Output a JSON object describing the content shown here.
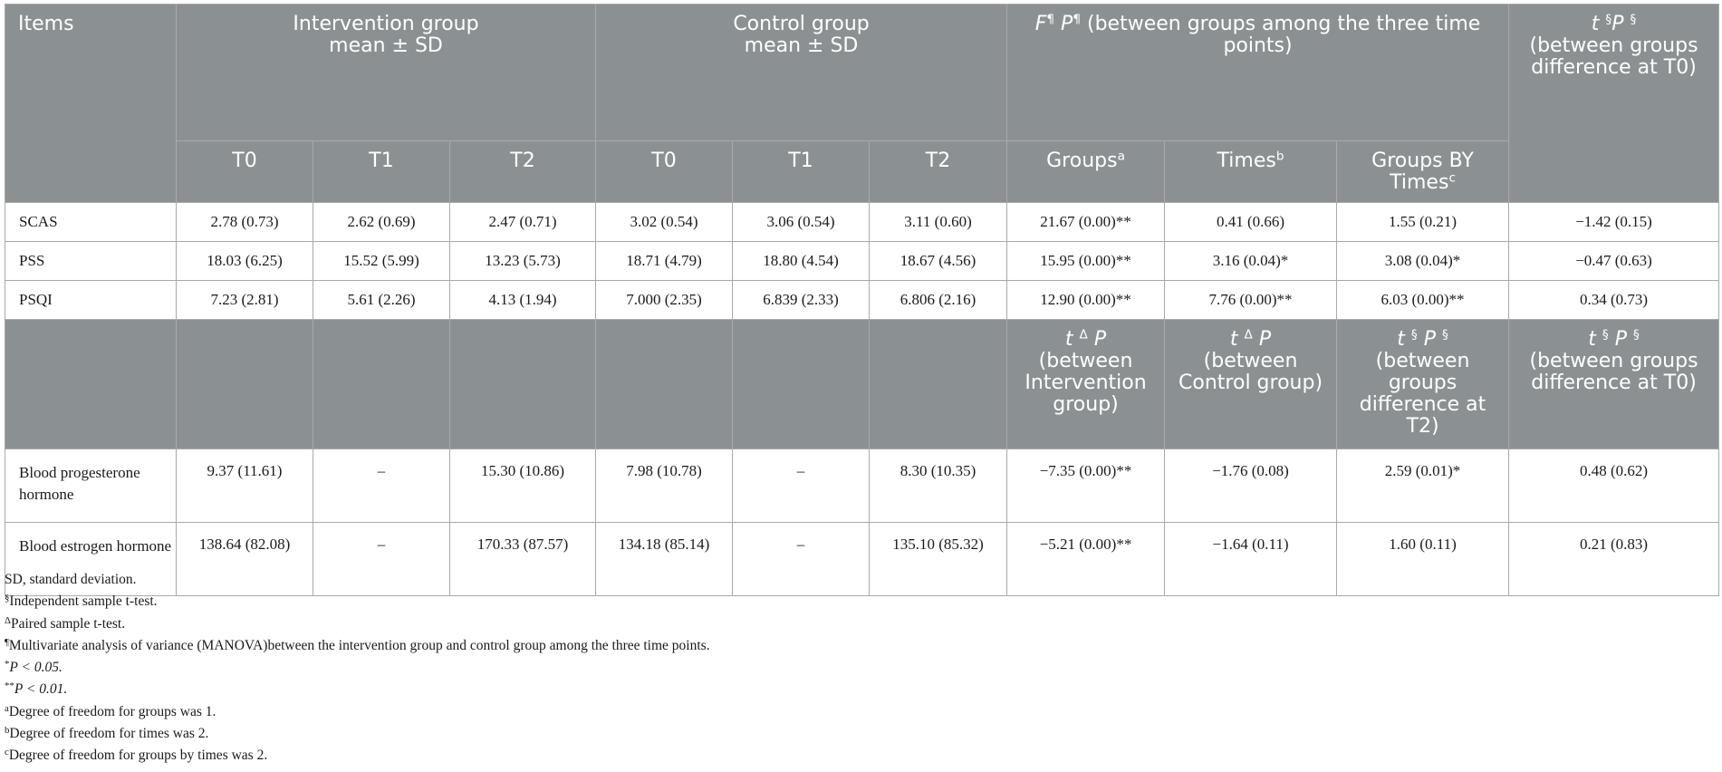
{
  "header": {
    "items": "Items",
    "intervention_group": "Intervention group",
    "control_group": "Control group",
    "mean_sd": "mean ± SD",
    "F": "F",
    "P": "P",
    "pilcrow": "¶",
    "between_groups_three_time_points": "(between groups among the three time points)",
    "t": "t",
    "section": "§",
    "delta": "Δ",
    "between_groups_diff_T0": "(between groups difference at T0)",
    "T0": "T0",
    "T1": "T1",
    "T2": "T2",
    "groups": "Groups",
    "times": "Times",
    "groups_by_times": "Groups BY Times",
    "sup_a": "a",
    "sup_b": "b",
    "sup_c": "c",
    "between_intervention": "(between Intervention group)",
    "between_control": "(between Control group)",
    "between_groups_diff_T2": "(between groups difference at T2)"
  },
  "rows": [
    {
      "item": "SCAS",
      "values": [
        "2.78 (0.73)",
        "2.62 (0.69)",
        "2.47 (0.71)",
        "3.02 (0.54)",
        "3.06 (0.54)",
        "3.11 (0.60)",
        "21.67 (0.00)**",
        "0.41 (0.66)",
        "1.55 (0.21)",
        "−1.42 (0.15)"
      ]
    },
    {
      "item": "PSS",
      "values": [
        "18.03 (6.25)",
        "15.52 (5.99)",
        "13.23 (5.73)",
        "18.71 (4.79)",
        "18.80 (4.54)",
        "18.67 (4.56)",
        "15.95 (0.00)**",
        "3.16 (0.04)*",
        "3.08 (0.04)*",
        "−0.47 (0.63)"
      ]
    },
    {
      "item": "PSQI",
      "values": [
        "7.23 (2.81)",
        "5.61 (2.26)",
        "4.13 (1.94)",
        "7.000 (2.35)",
        "6.839 (2.33)",
        "6.806 (2.16)",
        "12.90 (0.00)**",
        "7.76 (0.00)**",
        "6.03 (0.00)**",
        "0.34 (0.73)"
      ]
    }
  ],
  "rows2": [
    {
      "item": "Blood progesterone hormone",
      "values": [
        "9.37 (11.61)",
        "–",
        "15.30 (10.86)",
        "7.98 (10.78)",
        "–",
        "8.30 (10.35)",
        "−7.35 (0.00)**",
        "−1.76 (0.08)",
        "2.59 (0.01)*",
        "0.48 (0.62)"
      ]
    },
    {
      "item": "Blood estrogen hormone",
      "values": [
        "138.64 (82.08)",
        "–",
        "170.33 (87.57)",
        "134.18 (85.14)",
        "–",
        "135.10 (85.32)",
        "−5.21 (0.00)**",
        "−1.64 (0.11)",
        "1.60 (0.11)",
        "0.21 (0.83)"
      ]
    }
  ],
  "footnotes": {
    "sd": "SD, standard deviation.",
    "section_sym": "§",
    "section_text": "Independent sample t-test.",
    "delta_sym": "Δ",
    "delta_text": "Paired sample t-test.",
    "pilcrow_sym": "¶",
    "pilcrow_text": "Multivariate analysis of variance (MANOVA)between the intervention group and control group among the three time points.",
    "star_sym": "*",
    "star_text": "P < 0.05.",
    "dstar_sym": "**",
    "dstar_text": "P < 0.01.",
    "a_sym": "a",
    "a_text": "Degree of freedom for groups was 1.",
    "b_sym": "b",
    "b_text": "Degree of freedom for times was 2.",
    "c_sym": "c",
    "c_text": "Degree of freedom for groups by times was 2."
  }
}
